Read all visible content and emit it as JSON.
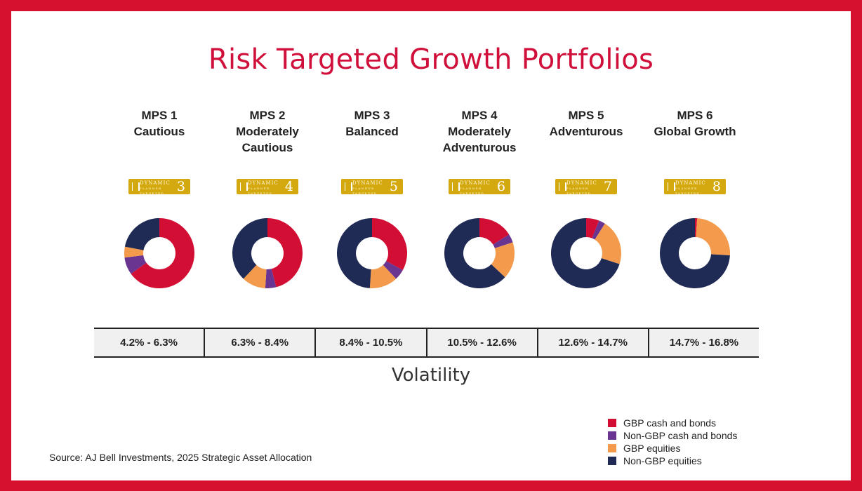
{
  "title": "Risk Targeted Growth Portfolios",
  "chart_data": {
    "type": "pie",
    "title": "Risk Targeted Growth Portfolios",
    "categories": [
      "MPS 1 Cautious",
      "MPS 2 Moderately Cautious",
      "MPS 3 Balanced",
      "MPS 4 Moderately Adventurous",
      "MPS 5 Adventurous",
      "MPS 6 Global Growth"
    ],
    "portfolios": [
      {
        "name": "MPS 1",
        "subtitle": "Cautious",
        "risk_rating": "3",
        "volatility": "4.2% - 6.3%",
        "values": [
          65,
          8,
          5,
          22
        ]
      },
      {
        "name": "MPS 2",
        "subtitle": "Moderately Cautious",
        "risk_rating": "4",
        "volatility": "6.3% - 8.4%",
        "values": [
          46,
          5,
          11,
          38
        ]
      },
      {
        "name": "MPS 3",
        "subtitle": "Balanced",
        "risk_rating": "5",
        "volatility": "8.4% - 10.5%",
        "values": [
          33,
          5,
          13,
          49
        ]
      },
      {
        "name": "MPS 4",
        "subtitle": "Moderately Adventurous",
        "risk_rating": "6",
        "volatility": "10.5% - 12.6%",
        "values": [
          16,
          4,
          17,
          63
        ]
      },
      {
        "name": "MPS 5",
        "subtitle": "Adventurous",
        "risk_rating": "7",
        "volatility": "12.6% - 14.7%",
        "values": [
          6,
          3,
          21,
          70
        ]
      },
      {
        "name": "MPS 6",
        "subtitle": "Global Growth",
        "risk_rating": "8",
        "volatility": "14.7% - 16.8%",
        "values": [
          1,
          0,
          25,
          74
        ]
      }
    ],
    "series": [
      {
        "name": "GBP cash and bonds",
        "color": "#d30e35"
      },
      {
        "name": "Non-GBP cash and bonds",
        "color": "#6a3590"
      },
      {
        "name": "GBP equities",
        "color": "#f39a4c"
      },
      {
        "name": "Non-GBP equities",
        "color": "#1f2a55"
      }
    ],
    "xlabel": "Volatility",
    "legend": "bottom-right"
  },
  "badge": {
    "line1": "DYNAMIC",
    "line2": "PLANNER",
    "line3": "TARGETED"
  },
  "source": "Source: AJ Bell Investments, 2025 Strategic Asset Allocation"
}
